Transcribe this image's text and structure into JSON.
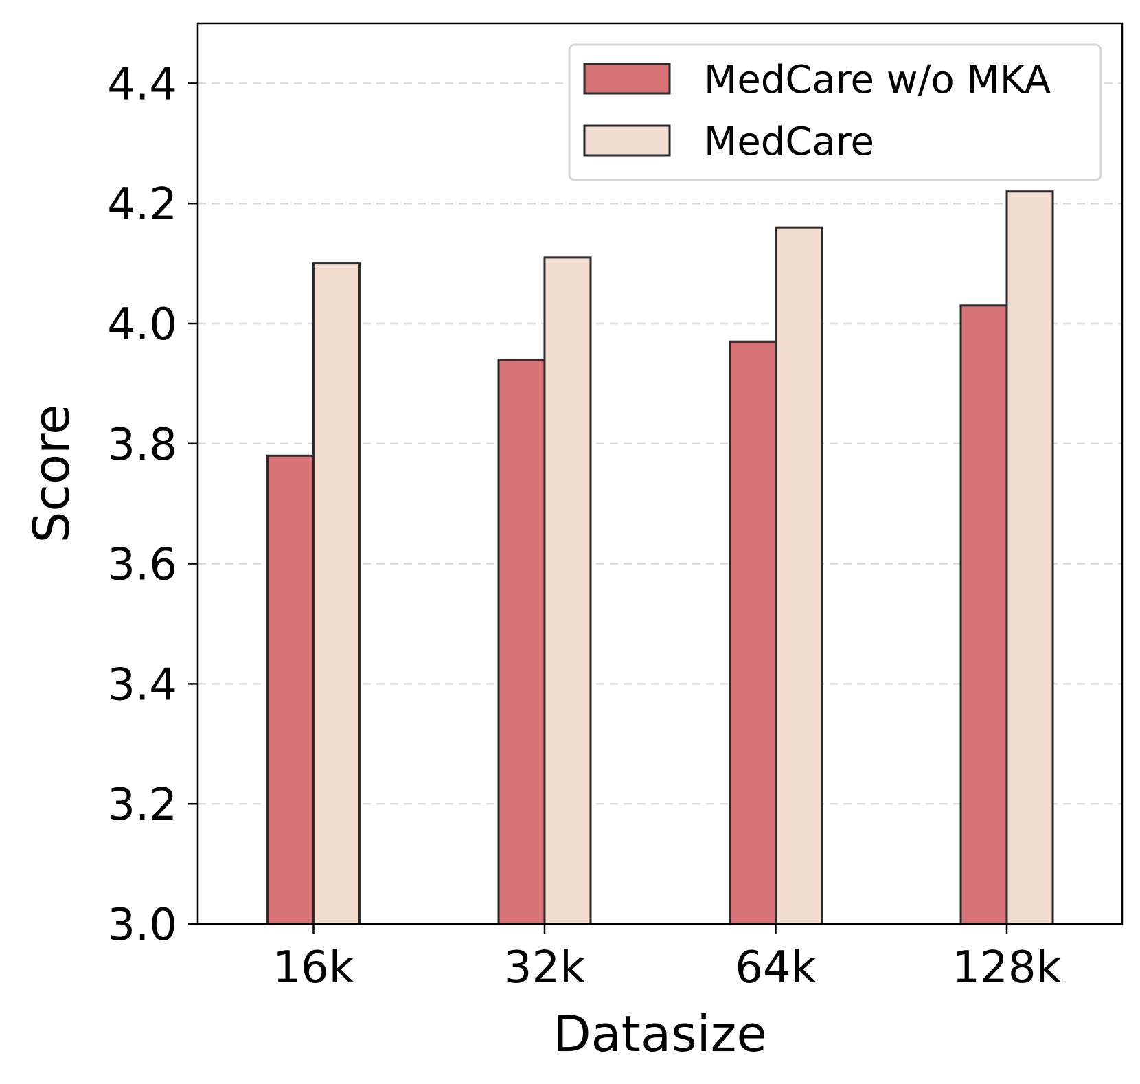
{
  "chart_data": {
    "type": "bar",
    "title": "",
    "xlabel": "Datasize",
    "ylabel": "Score",
    "categories": [
      "16k",
      "32k",
      "64k",
      "128k"
    ],
    "series": [
      {
        "name": "MedCare w/o MKA",
        "values": [
          3.78,
          3.94,
          3.97,
          4.03
        ],
        "color": "#d77275"
      },
      {
        "name": "MedCare",
        "values": [
          4.1,
          4.11,
          4.16,
          4.22
        ],
        "color": "#f2ddd0"
      }
    ],
    "ylim": [
      3.0,
      4.5
    ],
    "yticks": [
      3.0,
      3.2,
      3.4,
      3.6,
      3.8,
      4.0,
      4.2,
      4.4
    ],
    "ytick_labels": [
      "3.0",
      "3.2",
      "3.4",
      "3.6",
      "3.8",
      "4.0",
      "4.2",
      "4.4"
    ],
    "grid": "horizontal-dashed",
    "legend_position": "top-right",
    "edge_color": "#2b2b2b"
  }
}
